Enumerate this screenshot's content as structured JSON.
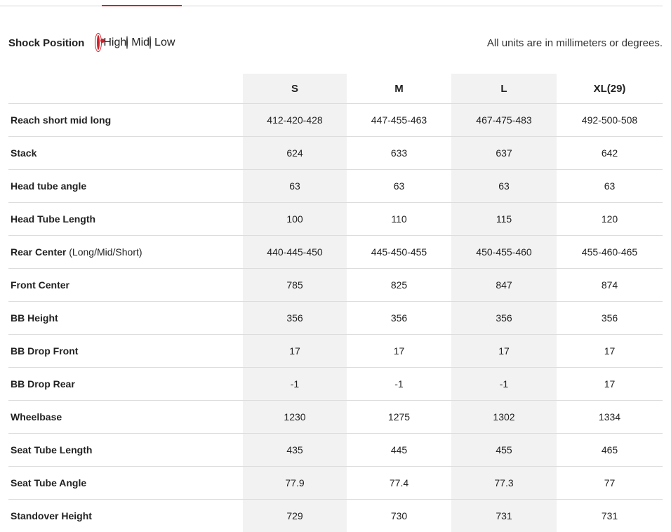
{
  "shock_position": {
    "label": "Shock Position",
    "options": [
      "High",
      "Mid",
      "Low"
    ],
    "selected": "High"
  },
  "note": "All units are in millimeters or degrees.",
  "table": {
    "columns": [
      "S",
      "M",
      "L",
      "XL(29)"
    ],
    "rows": [
      {
        "label": "Reach short mid long",
        "values": [
          "412-420-428",
          "447-455-463",
          "467-475-483",
          "492-500-508"
        ]
      },
      {
        "label": "Stack",
        "values": [
          "624",
          "633",
          "637",
          "642"
        ]
      },
      {
        "label": "Head tube angle",
        "values": [
          "63",
          "63",
          "63",
          "63"
        ]
      },
      {
        "label": "Head Tube Length",
        "values": [
          "100",
          "110",
          "115",
          "120"
        ]
      },
      {
        "label": "Rear Center",
        "note": "(Long/Mid/Short)",
        "values": [
          "440-445-450",
          "445-450-455",
          "450-455-460",
          "455-460-465"
        ]
      },
      {
        "label": "Front Center",
        "values": [
          "785",
          "825",
          "847",
          "874"
        ]
      },
      {
        "label": "BB Height",
        "values": [
          "356",
          "356",
          "356",
          "356"
        ]
      },
      {
        "label": "BB Drop Front",
        "values": [
          "17",
          "17",
          "17",
          "17"
        ]
      },
      {
        "label": "BB Drop Rear",
        "values": [
          "-1",
          "-1",
          "-1",
          "17"
        ]
      },
      {
        "label": "Wheelbase",
        "values": [
          "1230",
          "1275",
          "1302",
          "1334"
        ]
      },
      {
        "label": "Seat Tube Length",
        "values": [
          "435",
          "445",
          "455",
          "465"
        ]
      },
      {
        "label": "Seat Tube Angle",
        "values": [
          "77.9",
          "77.4",
          "77.3",
          "77"
        ]
      },
      {
        "label": "Standover Height",
        "values": [
          "729",
          "730",
          "731",
          "731"
        ]
      }
    ]
  }
}
